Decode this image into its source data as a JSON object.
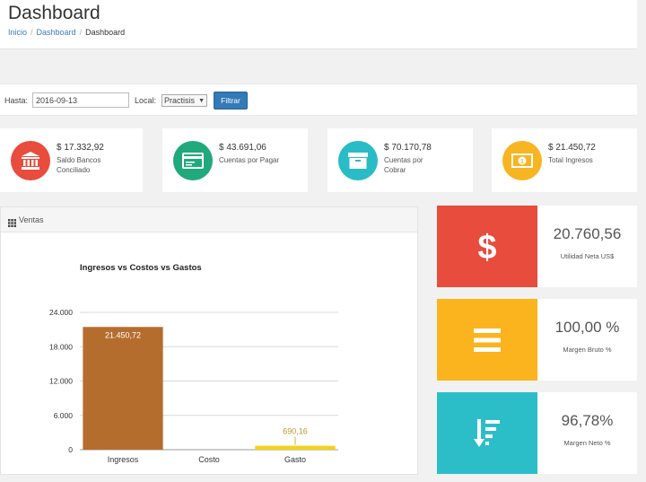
{
  "header": {
    "title": "Dashboard",
    "breadcrumb": [
      "Inicio",
      "Dashboard",
      "Dashboard"
    ]
  },
  "filter": {
    "hasta_label": "Hasta:",
    "date_value": "2016-09-13",
    "local_label": "Local:",
    "local_value": "Practisis",
    "button_label": "Filtrar"
  },
  "stats": [
    {
      "amount": "$ 17.332,92",
      "label": "Saldo Bancos Conciliado",
      "icon": "bank-icon",
      "color": "#e84c3d"
    },
    {
      "amount": "$ 43.691,06",
      "label": "Cuentas por Pagar",
      "icon": "credit-card-icon",
      "color": "#21a97c"
    },
    {
      "amount": "$ 70.170,78",
      "label": "Cuentas por Cobrar",
      "icon": "archive-box-icon",
      "color": "#29bcc6"
    },
    {
      "amount": "$ 21.450,72",
      "label": "Total Ingresos",
      "icon": "money-bill-icon",
      "color": "#f7b522"
    }
  ],
  "ventas": {
    "title": "Ventas"
  },
  "kpis": [
    {
      "value": "20.760,56",
      "label": "Utilidad Neta US$",
      "icon": "dollar-icon",
      "color": "#e84c3d"
    },
    {
      "value": "100,00 %",
      "label": "Margen Bruto %",
      "icon": "bars-icon",
      "color": "#fbb41d"
    },
    {
      "value": "96,78%",
      "label": "Margen Neto %",
      "icon": "sort-amount-down-icon",
      "color": "#2cbec8"
    }
  ],
  "chart_data": {
    "type": "bar",
    "title": "Ingresos vs Costos vs Gastos",
    "categories": [
      "Ingresos",
      "Costo",
      "Gasto"
    ],
    "values": [
      21450.72,
      0,
      690.16
    ],
    "data_labels": [
      "21.450,72",
      "",
      "690,16"
    ],
    "colors": [
      "#b56d2e",
      "#b56d2e",
      "#f3d21b"
    ],
    "ylim": [
      0,
      24000
    ],
    "yticks": [
      0,
      6000,
      12000,
      18000,
      24000
    ],
    "ytick_labels": [
      "0",
      "6.000",
      "12.000",
      "18.000",
      "24.000"
    ],
    "grid": true,
    "xlabel": "",
    "ylabel": ""
  }
}
